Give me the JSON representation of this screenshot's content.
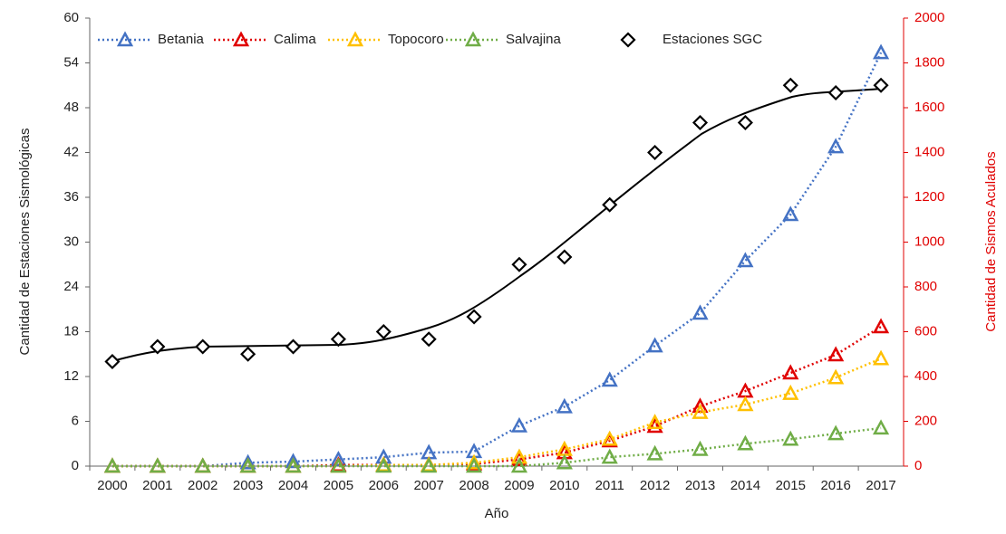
{
  "chart_data": {
    "type": "line",
    "xlabel": "Año",
    "ylabel": "Cantidad de Estaciones Sismológicas",
    "y2label": "Cantidad de Sismos Aculados",
    "categories": [
      "2000",
      "2001",
      "2002",
      "2003",
      "2004",
      "2005",
      "2006",
      "2007",
      "2008",
      "2009",
      "2010",
      "2011",
      "2012",
      "2013",
      "2014",
      "2015",
      "2016",
      "2017"
    ],
    "ylim": [
      0,
      60
    ],
    "yticks": [
      0,
      6,
      12,
      18,
      24,
      30,
      36,
      42,
      48,
      54,
      60
    ],
    "y2lim": [
      0,
      2000
    ],
    "y2ticks": [
      0,
      200,
      400,
      600,
      800,
      1000,
      1200,
      1400,
      1600,
      1800,
      2000
    ],
    "y2color": "#e00000",
    "legend": "top",
    "series": [
      {
        "name": "Betania",
        "color": "#4472c4",
        "axis": "y2",
        "marker": "triangle",
        "linestyle": "dotted",
        "values": [
          0,
          0,
          0,
          15,
          20,
          30,
          40,
          60,
          65,
          180,
          265,
          384,
          537,
          683,
          917,
          1123,
          1426,
          1846
        ]
      },
      {
        "name": "Calima",
        "color": "#e00000",
        "axis": "y2",
        "marker": "triangle",
        "linestyle": "dotted",
        "values": [
          0,
          0,
          0,
          0,
          0,
          5,
          5,
          5,
          10,
          30,
          60,
          113,
          178,
          267,
          335,
          416,
          497,
          622
        ]
      },
      {
        "name": "Topocoro",
        "color": "#ffc000",
        "axis": "y2",
        "marker": "triangle",
        "linestyle": "dotted",
        "values": [
          0,
          0,
          0,
          0,
          0,
          0,
          5,
          5,
          15,
          40,
          75,
          120,
          195,
          240,
          275,
          325,
          395,
          480
        ]
      },
      {
        "name": "Salvajina",
        "color": "#70ad47",
        "axis": "y2",
        "marker": "triangle",
        "linestyle": "dotted",
        "values": [
          0,
          0,
          0,
          0,
          0,
          0,
          0,
          0,
          0,
          0,
          15,
          40,
          55,
          75,
          100,
          120,
          145,
          170
        ]
      },
      {
        "name": "Estaciones SGC",
        "color": "#000000",
        "axis": "y",
        "marker": "diamond",
        "linestyle": "none",
        "values": [
          14,
          16,
          16,
          15,
          16,
          17,
          18,
          17,
          20,
          27,
          28,
          35,
          42,
          46,
          46,
          51,
          50,
          51
        ]
      }
    ]
  }
}
